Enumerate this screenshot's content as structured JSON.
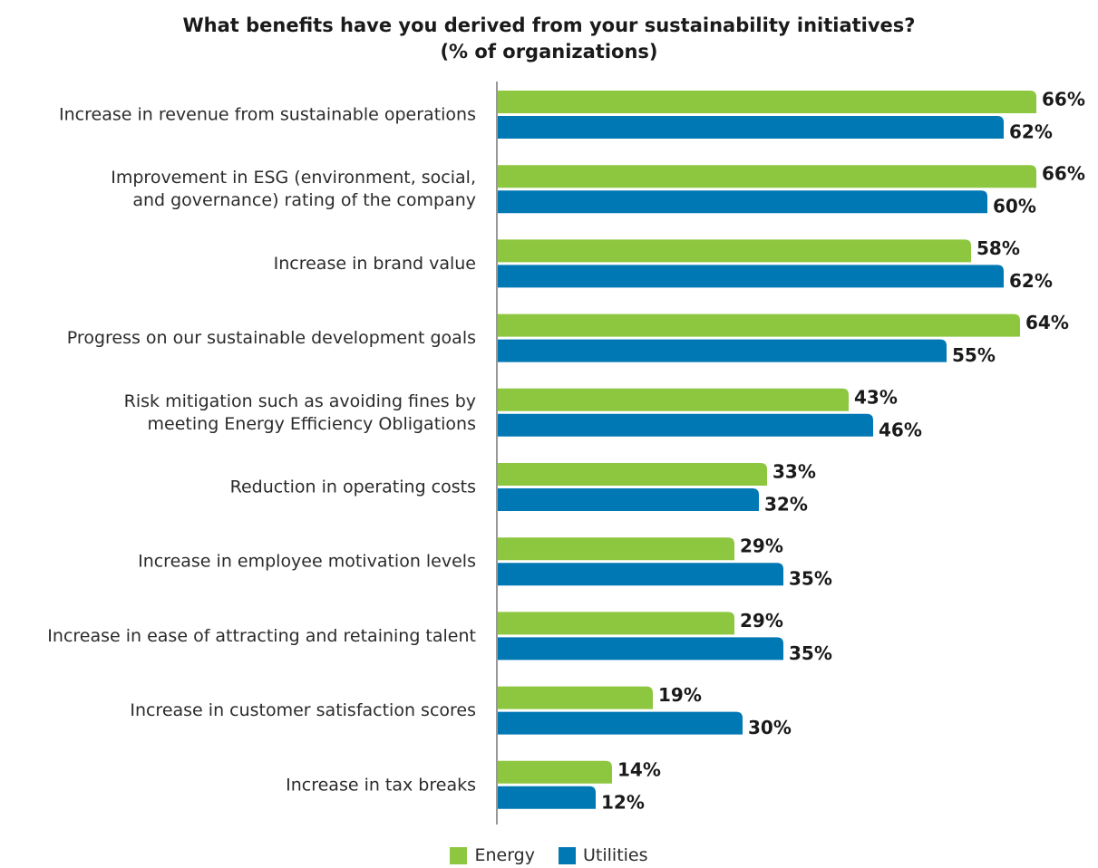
{
  "chart_data": {
    "type": "bar",
    "orientation": "horizontal",
    "title": "What benefits have you derived from your sustainability initiatives?",
    "subtitle": "(% of organizations)",
    "categories": [
      [
        "Increase in revenue from sustainable operations"
      ],
      [
        "Improvement in ESG (environment, social,",
        "and governance) rating of the company"
      ],
      [
        "Increase in brand value"
      ],
      [
        "Progress on our sustainable development goals"
      ],
      [
        "Risk mitigation such as avoiding fines by",
        "meeting Energy Efficiency Obligations"
      ],
      [
        "Reduction in operating costs"
      ],
      [
        "Increase in employee motivation levels"
      ],
      [
        "Increase in ease of attracting and retaining talent"
      ],
      [
        "Increase in customer satisfaction scores"
      ],
      [
        "Increase in tax breaks"
      ]
    ],
    "series": [
      {
        "name": "Energy",
        "color": "#8dc63f",
        "values": [
          66,
          66,
          58,
          64,
          43,
          33,
          29,
          29,
          19,
          14
        ]
      },
      {
        "name": "Utilities",
        "color": "#0078b4",
        "values": [
          62,
          60,
          62,
          55,
          46,
          32,
          35,
          35,
          30,
          12
        ]
      }
    ],
    "value_suffix": "%",
    "xlim": [
      0,
      66
    ],
    "grid": false,
    "legend": "bottom"
  }
}
